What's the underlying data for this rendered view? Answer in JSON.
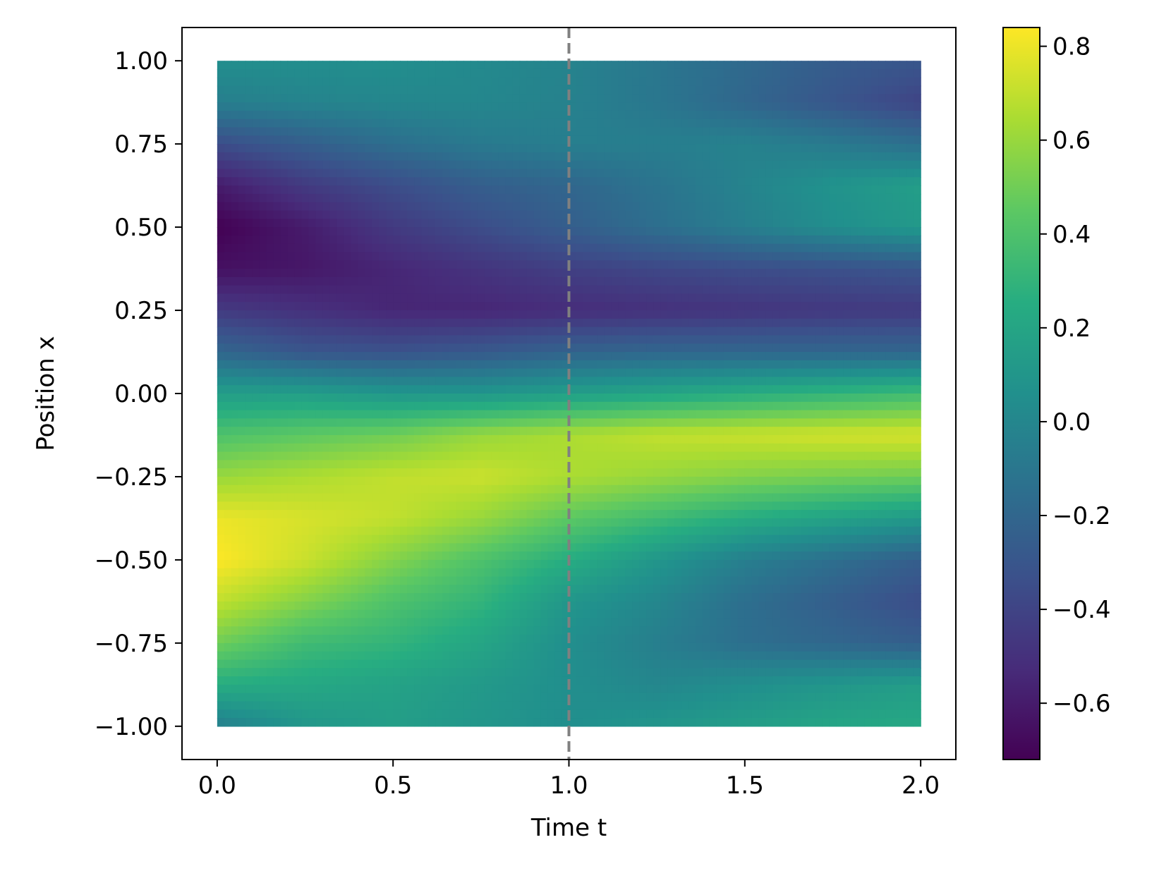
{
  "chart_data": {
    "type": "heatmap",
    "title": "",
    "xlabel": "Time t",
    "ylabel": "Position x",
    "xlim": [
      -0.1,
      2.1
    ],
    "ylim": [
      -1.1,
      1.1
    ],
    "x_range": [
      0.0,
      2.0
    ],
    "y_range": [
      -1.0,
      1.0
    ],
    "x_ticks": [
      0.0,
      0.5,
      1.0,
      1.5,
      2.0
    ],
    "x_tick_labels": [
      "0.0",
      "0.5",
      "1.0",
      "1.5",
      "2.0"
    ],
    "y_ticks": [
      1.0,
      0.75,
      0.5,
      0.25,
      0.0,
      -0.25,
      -0.5,
      -0.75,
      -1.0
    ],
    "y_tick_labels": [
      "1.00",
      "0.75",
      "0.50",
      "0.25",
      "0.00",
      "−0.25",
      "−0.50",
      "−0.75",
      "−1.00"
    ],
    "colormap": "viridis",
    "colorbar": {
      "vmin": -0.72,
      "vmax": 0.84,
      "ticks": [
        0.8,
        0.6,
        0.4,
        0.2,
        0.0,
        -0.2,
        -0.4,
        -0.6
      ],
      "tick_labels": [
        "0.8",
        "0.6",
        "0.4",
        "0.2",
        "0.0",
        "−0.2",
        "−0.4",
        "−0.6"
      ]
    },
    "vline": {
      "x": 1.0,
      "color": "#808080",
      "style": "dashed"
    },
    "grid": false,
    "field": {
      "x": [
        0.0,
        0.25,
        0.5,
        0.75,
        1.0,
        1.25,
        1.5,
        1.75,
        2.0
      ],
      "y": [
        1.0,
        0.875,
        0.75,
        0.625,
        0.5,
        0.375,
        0.25,
        0.125,
        0.0,
        -0.125,
        -0.25,
        -0.375,
        -0.5,
        -0.625,
        -0.75,
        -0.875,
        -1.0
      ],
      "values": [
        [
          0.05,
          0.05,
          0.05,
          0.02,
          -0.02,
          -0.1,
          -0.18,
          -0.26,
          -0.3
        ],
        [
          -0.05,
          -0.02,
          0.0,
          0.0,
          -0.03,
          -0.1,
          -0.2,
          -0.3,
          -0.4
        ],
        [
          -0.35,
          -0.25,
          -0.15,
          -0.08,
          -0.05,
          -0.05,
          -0.03,
          -0.08,
          -0.15
        ],
        [
          -0.6,
          -0.45,
          -0.35,
          -0.25,
          -0.2,
          -0.12,
          -0.02,
          0.08,
          0.15
        ],
        [
          -0.72,
          -0.6,
          -0.45,
          -0.35,
          -0.25,
          -0.15,
          -0.05,
          0.05,
          0.12
        ],
        [
          -0.65,
          -0.62,
          -0.55,
          -0.48,
          -0.42,
          -0.38,
          -0.35,
          -0.33,
          -0.3
        ],
        [
          -0.45,
          -0.5,
          -0.55,
          -0.55,
          -0.52,
          -0.5,
          -0.48,
          -0.46,
          -0.45
        ],
        [
          -0.2,
          -0.3,
          -0.32,
          -0.28,
          -0.22,
          -0.2,
          -0.2,
          -0.2,
          -0.2
        ],
        [
          0.15,
          0.15,
          0.1,
          0.1,
          0.15,
          0.2,
          0.25,
          0.3,
          0.35
        ],
        [
          0.4,
          0.45,
          0.5,
          0.6,
          0.65,
          0.7,
          0.72,
          0.74,
          0.75
        ],
        [
          0.6,
          0.65,
          0.7,
          0.72,
          0.65,
          0.6,
          0.55,
          0.52,
          0.5
        ],
        [
          0.8,
          0.75,
          0.7,
          0.6,
          0.45,
          0.35,
          0.25,
          0.18,
          0.12
        ],
        [
          0.84,
          0.72,
          0.55,
          0.4,
          0.25,
          0.1,
          -0.05,
          -0.15,
          -0.25
        ],
        [
          0.7,
          0.55,
          0.4,
          0.3,
          0.1,
          0.0,
          -0.15,
          -0.25,
          -0.35
        ],
        [
          0.5,
          0.35,
          0.3,
          0.2,
          0.05,
          -0.05,
          -0.15,
          -0.2,
          -0.25
        ],
        [
          0.25,
          0.22,
          0.18,
          0.12,
          0.05,
          0.0,
          0.05,
          0.1,
          0.15
        ],
        [
          -0.05,
          0.1,
          0.15,
          0.1,
          0.05,
          0.1,
          0.15,
          0.2,
          0.22
        ]
      ]
    }
  }
}
